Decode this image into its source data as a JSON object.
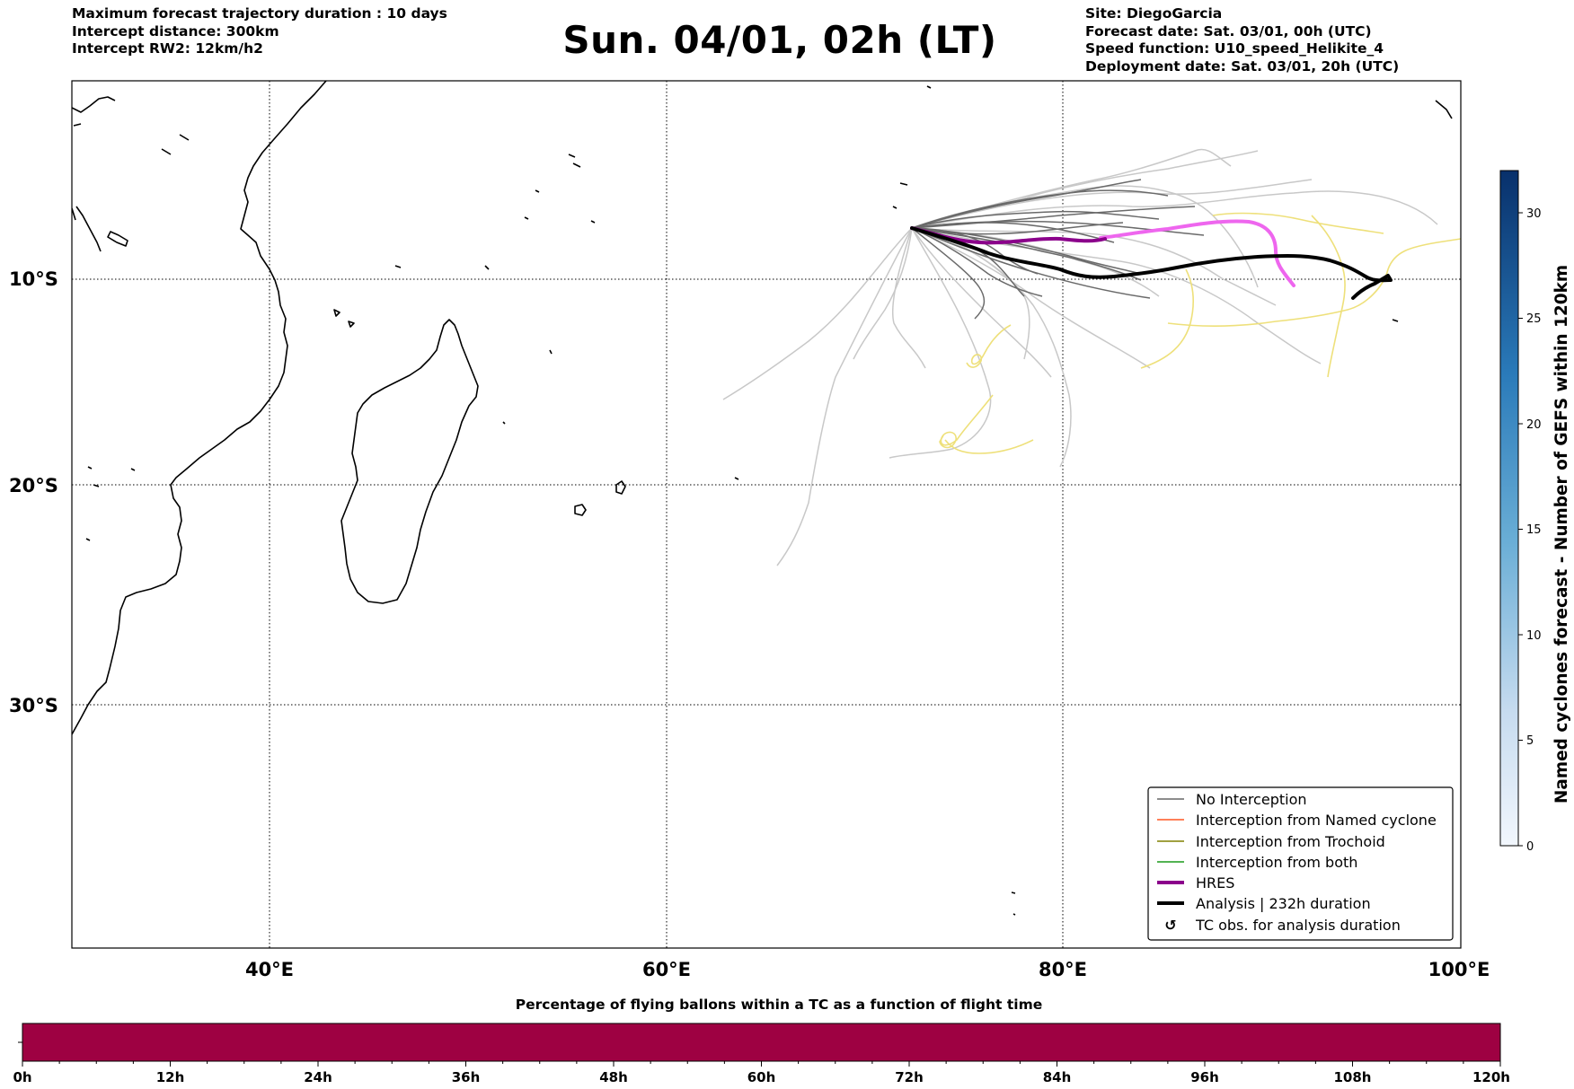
{
  "header": {
    "left": [
      "Maximum forecast trajectory duration : 10 days",
      "Intercept distance: 300km",
      "Intercept RW2: 12km/h2"
    ],
    "title": "Sun. 04/01, 02h (LT)",
    "right": [
      "Site: DiegoGarcia",
      "Forecast date: Sat. 03/01, 00h (UTC)",
      "Speed function: U10_speed_Helikite_4",
      "Deployment date: Sat. 03/01, 20h (UTC)"
    ]
  },
  "map": {
    "lat_labels": [
      "10°S",
      "20°S",
      "30°S"
    ],
    "lon_labels": [
      "40°E",
      "60°E",
      "80°E",
      "100°E"
    ],
    "extent": {
      "lon": [
        30,
        100
      ],
      "lat": [
        -43.5,
        0.5
      ]
    },
    "gridlines": {
      "lon": [
        40,
        60,
        80
      ],
      "lat": [
        -10,
        -20,
        -30
      ]
    },
    "colors": {
      "no_interception": "#666666",
      "gefs_light": "#c8c8c8",
      "named_cyclone": "#ff5722",
      "trochoid": "#808000",
      "both": "#1a9a1a",
      "hres": "#8b008b",
      "hres_light": "#ee66ee",
      "analysis": "#000000",
      "yellow_tracks": "#eee07a"
    }
  },
  "legend": {
    "items": [
      {
        "label": "No Interception",
        "color": "#666666",
        "style": "thin"
      },
      {
        "label": "Interception from Named cyclone",
        "color": "#ff5722",
        "style": "thin"
      },
      {
        "label": "Interception from Trochoid",
        "color": "#808000",
        "style": "thin"
      },
      {
        "label": "Interception from both",
        "color": "#1a9a1a",
        "style": "thin"
      },
      {
        "label": "HRES",
        "color": "#8b008b",
        "style": "thick"
      },
      {
        "label": "Analysis | 232h duration",
        "color": "#000000",
        "style": "thick"
      },
      {
        "label": "TC obs. for analysis duration",
        "color": "#000000",
        "style": "symbol",
        "symbol": "↺"
      }
    ]
  },
  "colorbar_right": {
    "label": "Named cyclones forecast - Number of GEFS within 120km",
    "ticks": [
      "0",
      "5",
      "10",
      "15",
      "20",
      "25",
      "30"
    ],
    "range": [
      0,
      32
    ]
  },
  "colorbar_bottom": {
    "title": "Percentage of flying ballons within a TC as a function of flight time",
    "ticks": [
      "0h",
      "12h",
      "24h",
      "36h",
      "48h",
      "60h",
      "72h",
      "84h",
      "96h",
      "108h",
      "120h"
    ],
    "fill_color": "#9e0142"
  }
}
